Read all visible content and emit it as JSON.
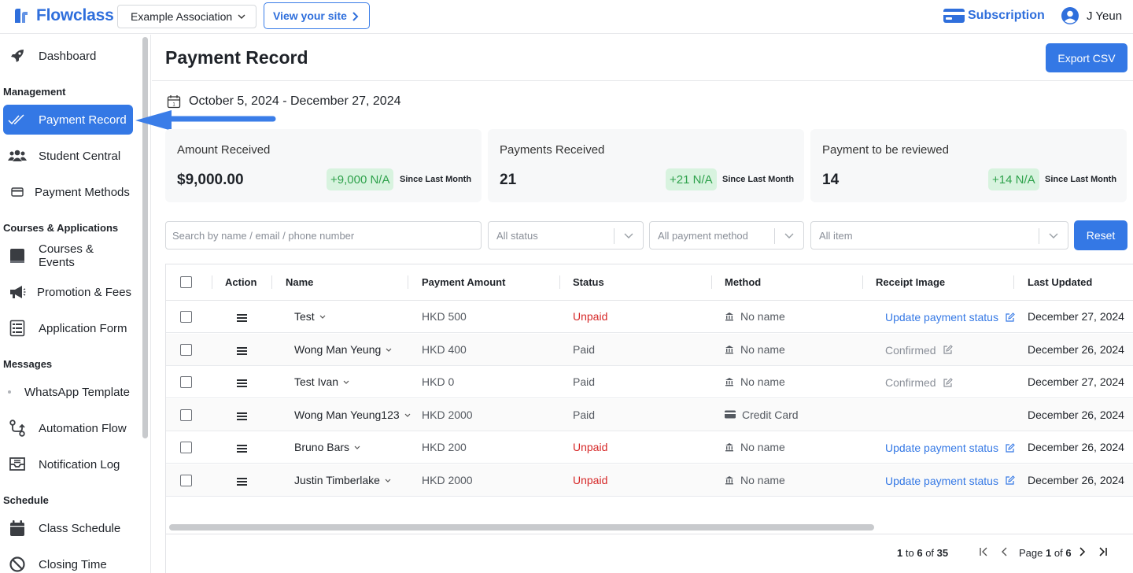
{
  "app": {
    "name": "Flowclass",
    "organization": "Example Association",
    "view_site_label": "View your site",
    "subscription_label": "Subscription",
    "user_name": "J Yeun",
    "brand_color": "#3478e5"
  },
  "sidebar": {
    "dashboard": "Dashboard",
    "sections": {
      "management": "Management",
      "courses": "Courses & Applications",
      "messages": "Messages",
      "schedule": "Schedule"
    },
    "items": {
      "payment_record": "Payment Record",
      "student_central": "Student Central",
      "payment_methods": "Payment Methods",
      "courses_events": "Courses & Events",
      "promotion_fees": "Promotion & Fees",
      "application_form": "Application Form",
      "whatsapp_template": "WhatsApp Template",
      "automation_flow": "Automation Flow",
      "notification_log": "Notification Log",
      "class_schedule": "Class Schedule",
      "closing_time": "Closing Time"
    }
  },
  "page": {
    "title": "Payment Record",
    "export_label": "Export CSV",
    "date_range": "October 5, 2024 - December 27, 2024"
  },
  "cards": [
    {
      "title": "Amount Received",
      "value": "$9,000.00",
      "badge": "+9,000 N/A",
      "since": "Since Last Month"
    },
    {
      "title": "Payments Received",
      "value": "21",
      "badge": "+21 N/A",
      "since": "Since Last Month"
    },
    {
      "title": "Payment to be reviewed",
      "value": "14",
      "badge": "+14 N/A",
      "since": "Since Last Month"
    }
  ],
  "filters": {
    "search_placeholder": "Search by name / email / phone number",
    "status": "All status",
    "payment_method": "All payment method",
    "item": "All item",
    "reset_label": "Reset"
  },
  "table": {
    "headers": {
      "action": "Action",
      "name": "Name",
      "amount": "Payment Amount",
      "status": "Status",
      "method": "Method",
      "receipt": "Receipt Image",
      "updated": "Last Updated"
    },
    "rows": [
      {
        "name": "Test",
        "amount": "HKD 500",
        "status": "Unpaid",
        "method": "No name",
        "method_icon": "bank-icon",
        "receipt": "Update payment status",
        "receipt_type": "link",
        "updated": "December 27, 2024"
      },
      {
        "name": "Wong Man Yeung",
        "amount": "HKD 400",
        "status": "Paid",
        "method": "No name",
        "method_icon": "bank-icon",
        "receipt": "Confirmed",
        "receipt_type": "confirmed",
        "updated": "December 26, 2024"
      },
      {
        "name": "Test Ivan",
        "amount": "HKD 0",
        "status": "Paid",
        "method": "No name",
        "method_icon": "bank-icon",
        "receipt": "Confirmed",
        "receipt_type": "confirmed",
        "updated": "December 27, 2024"
      },
      {
        "name": "Wong Man Yeung123",
        "amount": "HKD 2000",
        "status": "Paid",
        "method": "Credit Card",
        "method_icon": "credit-card-icon",
        "receipt": "",
        "receipt_type": "none",
        "updated": "December 26, 2024"
      },
      {
        "name": "Bruno Bars",
        "amount": "HKD 200",
        "status": "Unpaid",
        "method": "No name",
        "method_icon": "bank-icon",
        "receipt": "Update payment status",
        "receipt_type": "link",
        "updated": "December 26, 2024"
      },
      {
        "name": "Justin Timberlake",
        "amount": "HKD 2000",
        "status": "Unpaid",
        "method": "No name",
        "method_icon": "bank-icon",
        "receipt": "Update payment status",
        "receipt_type": "link",
        "updated": "December 26, 2024"
      }
    ]
  },
  "pagination": {
    "range_start": "1",
    "range_word": "to",
    "range_end": "6",
    "of_word": "of",
    "total": "35",
    "page_word": "Page",
    "current_page": "1",
    "total_pages": "6"
  },
  "colors": {
    "unpaid": "#d62828",
    "badge_bg": "#d8f3df",
    "badge_text": "#2fa24c"
  }
}
